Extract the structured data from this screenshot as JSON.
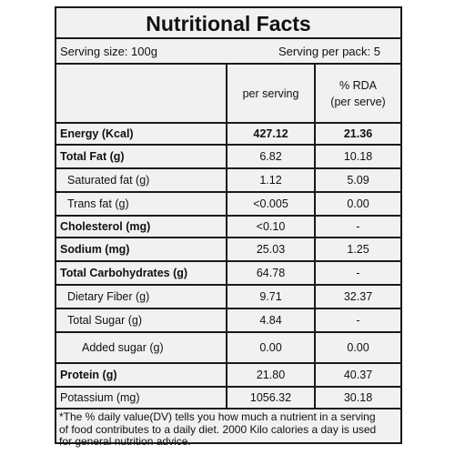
{
  "label": {
    "title": "Nutritional Facts",
    "serving_size": "Serving size: 100g",
    "serving_per_pack": "Serving per pack: 5",
    "columns": {
      "per_serving": "per serving",
      "rda": "% RDA\n(per serve)"
    },
    "rows": [
      {
        "name": "Energy (Kcal)",
        "per_serving": "427.12",
        "rda": "21.36",
        "bold": true,
        "indent": 0
      },
      {
        "name": "Total Fat (g)",
        "per_serving": "6.82",
        "rda": "10.18",
        "bold": true,
        "indent": 0
      },
      {
        "name": "Saturated fat (g)",
        "per_serving": "1.12",
        "rda": "5.09",
        "bold": false,
        "indent": 1
      },
      {
        "name": "Trans fat (g)",
        "per_serving": "<0.005",
        "rda": "0.00",
        "bold": false,
        "indent": 1
      },
      {
        "name": "Cholesterol (mg)",
        "per_serving": "<0.10",
        "rda": "-",
        "bold": true,
        "indent": 0
      },
      {
        "name": "Sodium (mg)",
        "per_serving": "25.03",
        "rda": "1.25",
        "bold": true,
        "indent": 0
      },
      {
        "name": "Total Carbohydrates (g)",
        "per_serving": "64.78",
        "rda": "-",
        "bold": true,
        "indent": 0
      },
      {
        "name": "Dietary Fiber (g)",
        "per_serving": "9.71",
        "rda": "32.37",
        "bold": false,
        "indent": 1
      },
      {
        "name": "Total Sugar (g)",
        "per_serving": "4.84",
        "rda": "-",
        "bold": false,
        "indent": 1
      },
      {
        "name": "Added sugar (g)",
        "per_serving": "0.00",
        "rda": "0.00",
        "bold": false,
        "indent": 2
      },
      {
        "name": "Protein (g)",
        "per_serving": "21.80",
        "rda": "40.37",
        "bold": true,
        "indent": 0
      },
      {
        "name": "Potassium (mg)",
        "per_serving": "1056.32",
        "rda": "30.18",
        "bold": false,
        "indent": 0
      }
    ],
    "footnote": [
      "*The % daily value(DV) tells you how much a nutrient in a serving",
      "of food contributes to a daily diet. 2000 Kilo calories a day is used",
      "for general nutrition advice."
    ]
  }
}
